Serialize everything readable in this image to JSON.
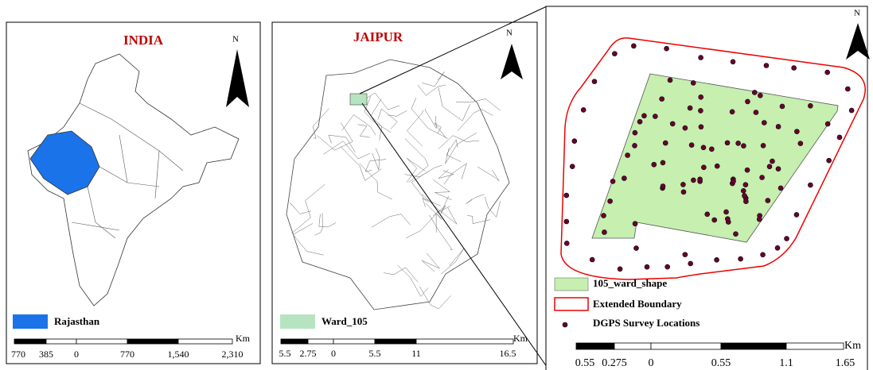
{
  "panels": [
    {
      "title": "INDIA",
      "north": "N",
      "legend": "Rajasthan",
      "scale": {
        "unit": "Km",
        "labels": [
          "770",
          "385",
          "0",
          "770",
          "1,540",
          "2,310"
        ]
      }
    },
    {
      "title": "JAIPUR",
      "north": "N",
      "legend": "Ward_105",
      "scale": {
        "unit": "Km",
        "labels": [
          "5.5",
          "2.75",
          "0",
          "5.5",
          "11",
          "16.5"
        ]
      }
    },
    {
      "north": "N",
      "legend": [
        "105_ward_shape",
        "Extended Boundary",
        "DGPS Survey Locations"
      ],
      "scale": {
        "unit": "Km",
        "labels": [
          "0.55",
          "0.275",
          "0",
          "0.55",
          "1.1",
          "1.65"
        ]
      }
    }
  ]
}
